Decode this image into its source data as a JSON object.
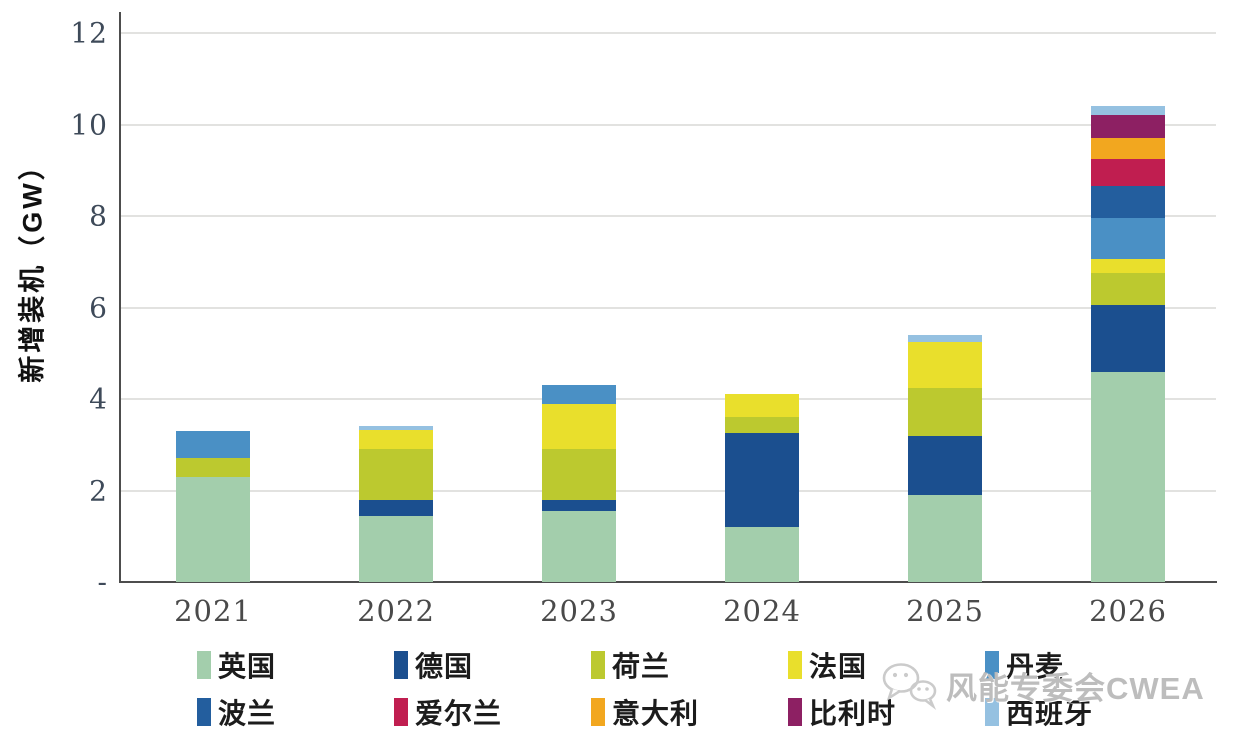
{
  "chart_data": {
    "type": "stacked-bar",
    "title": "",
    "ylabel": "新增装机（GW）",
    "xlabel": "",
    "ylim": [
      0,
      12
    ],
    "grid": "horizontal",
    "legend_position": "bottom",
    "categories": [
      "2021",
      "2022",
      "2023",
      "2024",
      "2025",
      "2026"
    ],
    "y_axis": {
      "tick_labels": [
        "12",
        "10",
        "8",
        "6",
        "4",
        "2",
        "-"
      ],
      "tick_values": [
        12,
        10,
        8,
        6,
        4,
        2,
        0
      ]
    },
    "series": [
      {
        "name": "英国",
        "color": "#a3ceac",
        "values": [
          2.3,
          1.45,
          1.55,
          1.2,
          1.9,
          4.6
        ]
      },
      {
        "name": "德国",
        "color": "#1b4f8f",
        "values": [
          0,
          0.35,
          0.25,
          2.05,
          1.3,
          1.45
        ]
      },
      {
        "name": "荷兰",
        "color": "#bcc92f",
        "values": [
          0.4,
          1.1,
          1.1,
          0.35,
          1.05,
          0.7
        ]
      },
      {
        "name": "法国",
        "color": "#e9df2c",
        "values": [
          0,
          0.43,
          1.0,
          0.5,
          1.0,
          0.3
        ]
      },
      {
        "name": "丹麦",
        "color": "#4a90c5",
        "values": [
          0.6,
          0,
          0.4,
          0,
          0,
          0.9
        ]
      },
      {
        "name": "波兰",
        "color": "#235e9e",
        "values": [
          0,
          0,
          0,
          0,
          0,
          0.7
        ]
      },
      {
        "name": "爱尔兰",
        "color": "#c01e50",
        "values": [
          0,
          0,
          0,
          0,
          0,
          0.6
        ]
      },
      {
        "name": "意大利",
        "color": "#f2a71f",
        "values": [
          0,
          0,
          0,
          0,
          0,
          0.45
        ]
      },
      {
        "name": "比利时",
        "color": "#8d2063",
        "values": [
          0,
          0,
          0,
          0,
          0,
          0.5
        ]
      },
      {
        "name": "西班牙",
        "color": "#95c1e1",
        "values": [
          0,
          0.07,
          0,
          0,
          0.15,
          0.2
        ]
      }
    ]
  },
  "watermark": {
    "text": "风能专委会CWEA",
    "icon": "wechat-icon"
  }
}
